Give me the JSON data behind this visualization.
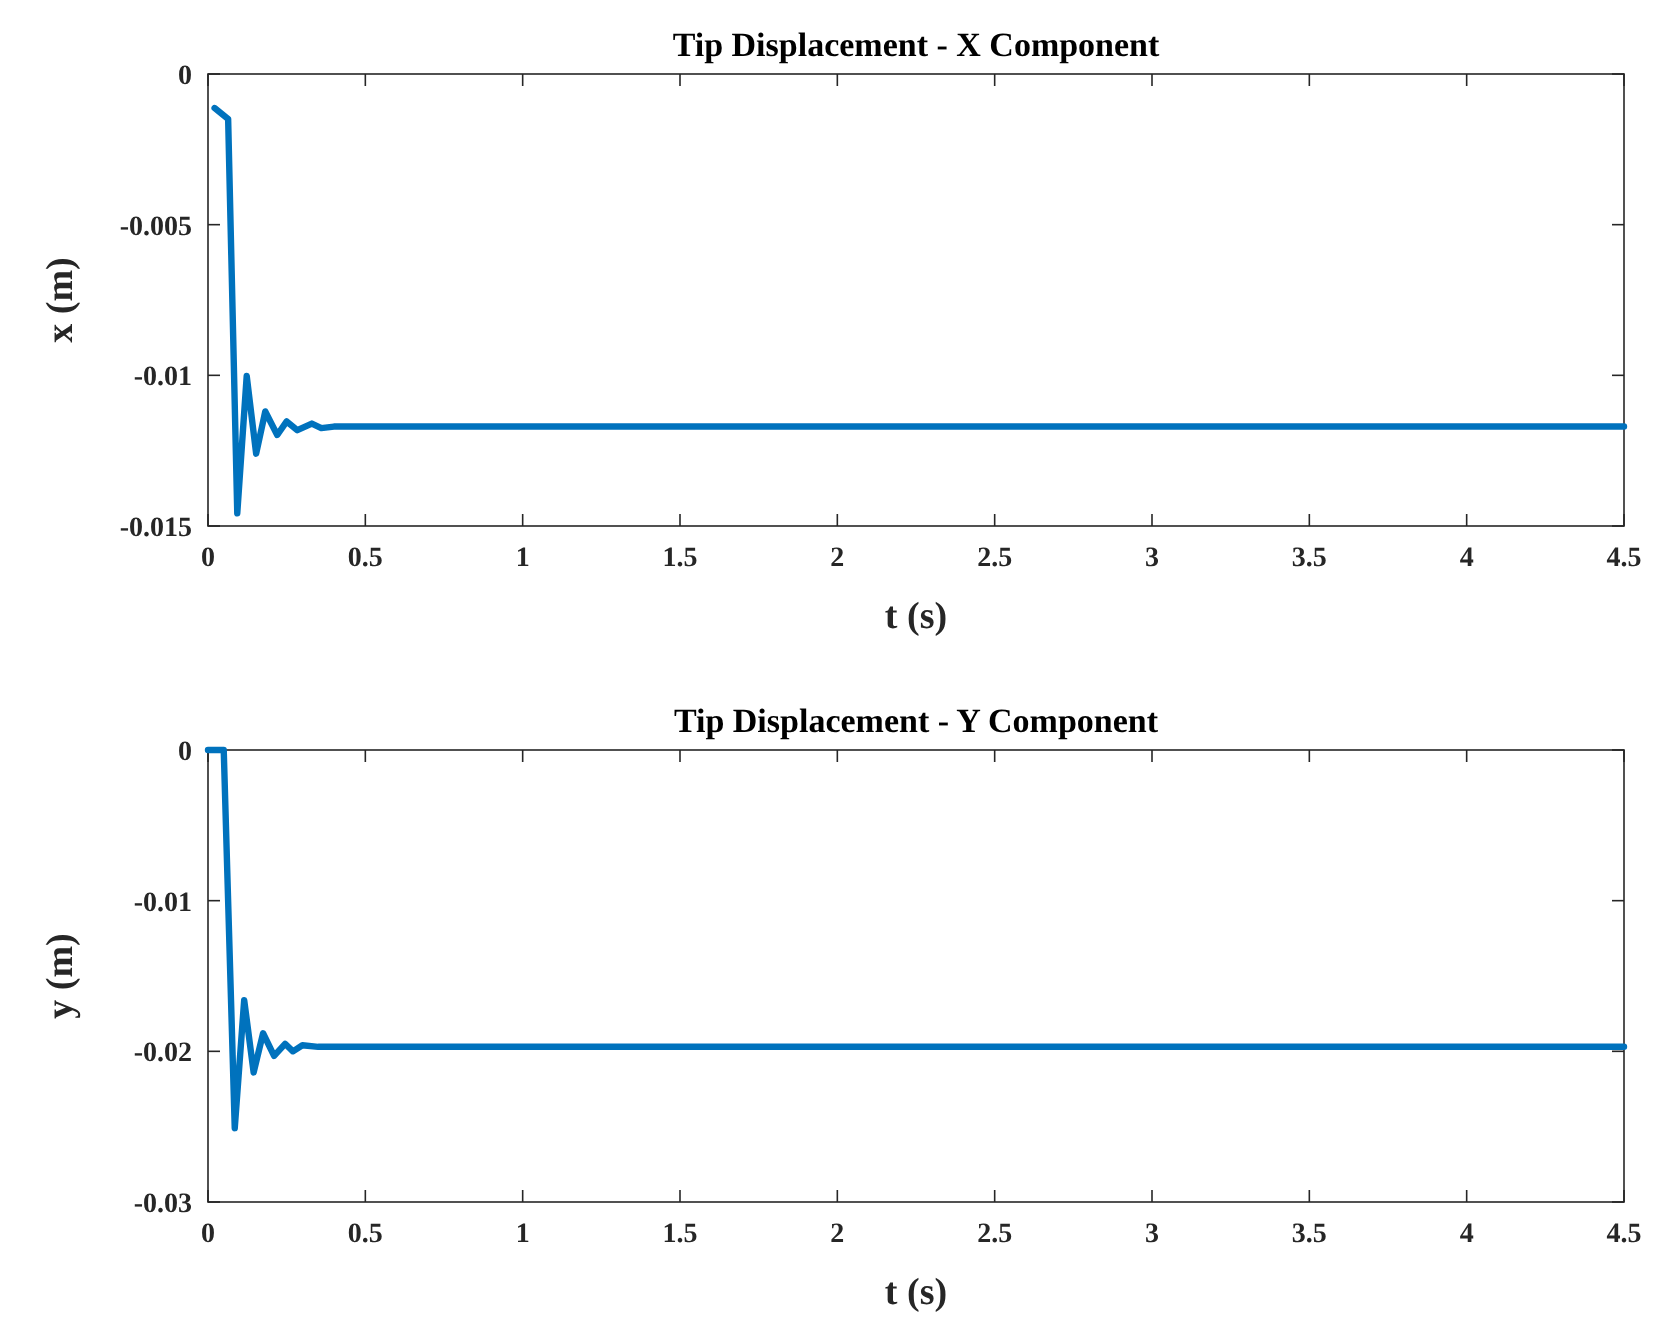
{
  "chart_data": [
    {
      "type": "line",
      "title": "Tip Displacement - X Component",
      "xlabel": "t (s)",
      "ylabel": "x (m)",
      "xlim": [
        0,
        4.5
      ],
      "xticks": [
        0,
        0.5,
        1,
        1.5,
        2,
        2.5,
        3,
        3.5,
        4,
        4.5
      ],
      "ylim": [
        -0.015,
        0
      ],
      "yticks": [
        -0.015,
        -0.01,
        -0.005,
        0
      ],
      "series": [
        {
          "color": "#0072bd",
          "x": [
            0.021,
            0.064,
            0.093,
            0.123,
            0.153,
            0.182,
            0.22,
            0.25,
            0.284,
            0.33,
            0.36,
            0.4,
            1,
            2,
            3,
            4,
            4.5
          ],
          "values": [
            -0.00113,
            -0.00149,
            -0.01458,
            -0.01002,
            -0.0126,
            -0.0112,
            -0.01198,
            -0.01153,
            -0.01182,
            -0.0116,
            -0.01175,
            -0.0117,
            -0.0117,
            -0.0117,
            -0.0117,
            -0.0117,
            -0.0117
          ]
        }
      ]
    },
    {
      "type": "line",
      "title": "Tip Displacement - Y Component",
      "xlabel": "t (s)",
      "ylabel": "y (m)",
      "xlim": [
        0,
        4.5
      ],
      "xticks": [
        0,
        0.5,
        1,
        1.5,
        2,
        2.5,
        3,
        3.5,
        4,
        4.5
      ],
      "ylim": [
        -0.03,
        0
      ],
      "yticks": [
        -0.03,
        -0.02,
        -0.01,
        0
      ],
      "series": [
        {
          "color": "#0072bd",
          "x": [
            0,
            0.05,
            0.085,
            0.115,
            0.145,
            0.175,
            0.21,
            0.245,
            0.27,
            0.3,
            0.35,
            1,
            2,
            3,
            4,
            4.5
          ],
          "values": [
            0,
            0,
            -0.0251,
            -0.0166,
            -0.0214,
            -0.0188,
            -0.0203,
            -0.0195,
            -0.02,
            -0.0196,
            -0.0197,
            -0.0197,
            -0.0197,
            -0.0197,
            -0.0197,
            -0.0197
          ]
        }
      ]
    }
  ]
}
